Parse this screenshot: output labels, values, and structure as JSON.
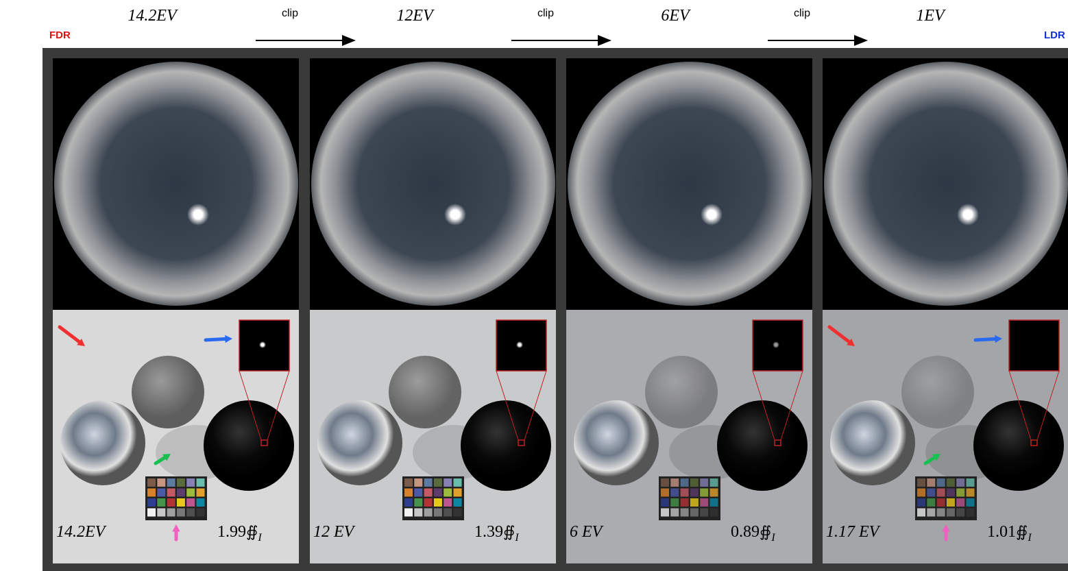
{
  "header": {
    "left_tag": "FDR",
    "right_tag": "LDR",
    "levels": [
      "14.2EV",
      "12EV",
      "6EV",
      "1EV"
    ],
    "transitions": [
      "clip",
      "clip",
      "clip"
    ]
  },
  "panels": [
    {
      "ev_label": "14.2EV",
      "metric": "1.99",
      "symbol": "∯",
      "subscript": "I"
    },
    {
      "ev_label": "12 EV",
      "metric": "1.39",
      "symbol": "∯",
      "subscript": "I"
    },
    {
      "ev_label": "6 EV",
      "metric": "0.89",
      "symbol": "∯",
      "subscript": "I"
    },
    {
      "ev_label": "1.17 EV",
      "metric": "1.01",
      "symbol": "∯",
      "subscript": "I"
    }
  ]
}
